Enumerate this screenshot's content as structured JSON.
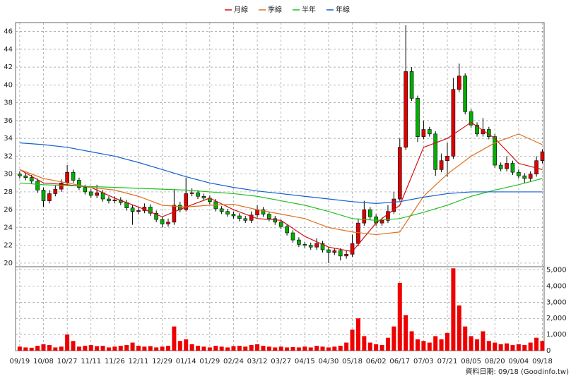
{
  "chart_data": {
    "type": "candlestick",
    "legend": [
      "月線",
      "季線",
      "半年",
      "年線"
    ],
    "footer": "資料日期: 09/18 (Goodinfo.tw)",
    "grid": true,
    "up_color": "#e00000",
    "down_color": "#00b000",
    "volume_color": "#ee0000",
    "xlim": [
      -0.7,
      88.3
    ],
    "xticks": [
      {
        "value": 0,
        "label": "09/19"
      },
      {
        "value": 4,
        "label": "10/08"
      },
      {
        "value": 8,
        "label": "10/27"
      },
      {
        "value": 12,
        "label": "11/11"
      },
      {
        "value": 16,
        "label": "11/26"
      },
      {
        "value": 20,
        "label": "12/11"
      },
      {
        "value": 24,
        "label": "12/29"
      },
      {
        "value": 28,
        "label": "01/14"
      },
      {
        "value": 32,
        "label": "01/29"
      },
      {
        "value": 36,
        "label": "02/24"
      },
      {
        "value": 40,
        "label": "03/12"
      },
      {
        "value": 44,
        "label": "03/27"
      },
      {
        "value": 48,
        "label": "04/15"
      },
      {
        "value": 52,
        "label": "04/30"
      },
      {
        "value": 56,
        "label": "05/18"
      },
      {
        "value": 60,
        "label": "06/02"
      },
      {
        "value": 64,
        "label": "06/17"
      },
      {
        "value": 68,
        "label": "07/03"
      },
      {
        "value": 72,
        "label": "07/21"
      },
      {
        "value": 76,
        "label": "08/05"
      },
      {
        "value": 80,
        "label": "08/20"
      },
      {
        "value": 84,
        "label": "09/04"
      },
      {
        "value": 88,
        "label": "09/18"
      }
    ],
    "ylim": [
      19.6,
      47
    ],
    "yticks": [
      20,
      22,
      24,
      26,
      28,
      30,
      32,
      34,
      36,
      38,
      40,
      42,
      44,
      46
    ],
    "y2lim": [
      0,
      5200
    ],
    "y2ticks": [
      0,
      {
        "value": 1000,
        "label": "1,000"
      },
      {
        "value": 2000,
        "label": "2,000"
      },
      {
        "value": 3000,
        "label": "3,000"
      },
      {
        "value": 4000,
        "label": "4,000"
      },
      {
        "value": 5000,
        "label": "5,000"
      }
    ],
    "ohlc": [
      [
        30.0,
        30.3,
        29.5,
        29.8
      ],
      [
        29.8,
        30.1,
        29.3,
        29.6
      ],
      [
        29.6,
        29.9,
        28.9,
        29.2
      ],
      [
        29.2,
        29.5,
        27.9,
        28.2
      ],
      [
        28.2,
        28.5,
        26.3,
        27.0
      ],
      [
        27.0,
        28.2,
        26.7,
        27.8
      ],
      [
        27.8,
        28.7,
        27.5,
        28.3
      ],
      [
        28.3,
        29.4,
        28.0,
        29.0
      ],
      [
        29.0,
        31.0,
        28.7,
        30.2
      ],
      [
        30.2,
        30.5,
        29.0,
        29.3
      ],
      [
        29.3,
        29.6,
        28.2,
        28.5
      ],
      [
        28.5,
        28.8,
        27.7,
        28.0
      ],
      [
        28.0,
        28.3,
        27.3,
        27.6
      ],
      [
        27.6,
        28.8,
        27.3,
        27.9
      ],
      [
        27.9,
        28.2,
        26.9,
        27.2
      ],
      [
        27.2,
        27.5,
        26.7,
        27.0
      ],
      [
        27.0,
        27.5,
        26.7,
        27.1
      ],
      [
        27.1,
        27.4,
        26.5,
        26.8
      ],
      [
        26.8,
        27.1,
        25.9,
        26.2
      ],
      [
        26.2,
        26.5,
        24.3,
        25.8
      ],
      [
        25.8,
        26.3,
        25.5,
        25.9
      ],
      [
        25.9,
        26.7,
        25.6,
        26.3
      ],
      [
        26.3,
        26.6,
        25.3,
        25.6
      ],
      [
        25.6,
        25.9,
        24.6,
        24.9
      ],
      [
        24.9,
        25.2,
        24.0,
        24.4
      ],
      [
        24.4,
        25.0,
        24.1,
        24.6
      ],
      [
        24.6,
        28.3,
        24.3,
        26.5
      ],
      [
        26.5,
        26.9,
        25.7,
        26.0
      ],
      [
        26.0,
        29.6,
        25.8,
        27.8
      ],
      [
        27.8,
        28.4,
        27.5,
        27.9
      ],
      [
        27.9,
        28.2,
        27.2,
        27.5
      ],
      [
        27.5,
        27.8,
        27.0,
        27.3
      ],
      [
        27.3,
        27.6,
        26.6,
        26.9
      ],
      [
        26.9,
        27.2,
        25.8,
        26.1
      ],
      [
        26.1,
        26.4,
        25.5,
        25.8
      ],
      [
        25.8,
        26.1,
        25.2,
        25.5
      ],
      [
        25.5,
        25.8,
        25.0,
        25.3
      ],
      [
        25.3,
        25.6,
        24.7,
        25.0
      ],
      [
        25.0,
        25.3,
        24.5,
        24.8
      ],
      [
        24.8,
        25.8,
        24.5,
        25.4
      ],
      [
        25.4,
        26.5,
        25.1,
        26.0
      ],
      [
        26.0,
        26.3,
        25.2,
        25.5
      ],
      [
        25.5,
        25.8,
        24.7,
        25.0
      ],
      [
        25.0,
        25.3,
        24.3,
        24.6
      ],
      [
        24.6,
        24.9,
        23.8,
        24.1
      ],
      [
        24.1,
        24.4,
        23.1,
        23.4
      ],
      [
        23.4,
        23.7,
        22.3,
        22.6
      ],
      [
        22.6,
        22.9,
        21.8,
        22.1
      ],
      [
        22.1,
        22.4,
        21.7,
        22.0
      ],
      [
        22.0,
        22.3,
        21.5,
        21.8
      ],
      [
        21.8,
        22.8,
        21.5,
        22.2
      ],
      [
        22.2,
        22.5,
        21.2,
        21.5
      ],
      [
        21.5,
        21.8,
        20.0,
        21.2
      ],
      [
        21.2,
        21.7,
        20.9,
        21.4
      ],
      [
        21.4,
        21.7,
        20.3,
        20.8
      ],
      [
        20.8,
        21.4,
        20.5,
        21.0
      ],
      [
        21.0,
        23.2,
        20.7,
        22.2
      ],
      [
        22.2,
        25.0,
        21.9,
        24.5
      ],
      [
        24.5,
        27.0,
        24.2,
        26.0
      ],
      [
        26.0,
        26.3,
        24.9,
        25.2
      ],
      [
        25.2,
        25.5,
        24.2,
        24.5
      ],
      [
        24.5,
        25.1,
        24.2,
        24.8
      ],
      [
        24.8,
        26.5,
        24.5,
        25.8
      ],
      [
        25.8,
        28.0,
        25.5,
        27.2
      ],
      [
        27.2,
        34.0,
        27.0,
        33.0
      ],
      [
        33.0,
        46.7,
        32.7,
        41.5
      ],
      [
        41.5,
        42.0,
        38.2,
        38.5
      ],
      [
        38.5,
        38.8,
        33.6,
        34.2
      ],
      [
        34.2,
        36.0,
        33.9,
        35.0
      ],
      [
        35.0,
        35.3,
        34.2,
        34.5
      ],
      [
        34.5,
        34.8,
        29.8,
        30.5
      ],
      [
        30.5,
        32.3,
        30.2,
        31.5
      ],
      [
        31.5,
        33.5,
        29.7,
        32.0
      ],
      [
        32.0,
        40.8,
        31.7,
        39.5
      ],
      [
        39.5,
        42.4,
        39.2,
        41.0
      ],
      [
        41.0,
        41.3,
        36.7,
        37.0
      ],
      [
        37.0,
        37.3,
        35.2,
        35.5
      ],
      [
        35.5,
        35.8,
        34.2,
        34.5
      ],
      [
        34.5,
        36.3,
        34.2,
        35.0
      ],
      [
        35.0,
        35.3,
        33.9,
        34.2
      ],
      [
        34.2,
        34.5,
        30.7,
        31.0
      ],
      [
        31.0,
        31.3,
        30.3,
        30.6
      ],
      [
        30.6,
        32.0,
        30.3,
        31.2
      ],
      [
        31.2,
        31.5,
        29.9,
        30.2
      ],
      [
        30.2,
        30.5,
        29.5,
        29.8
      ],
      [
        29.8,
        30.1,
        29.0,
        29.5
      ],
      [
        29.5,
        30.3,
        29.2,
        30.0
      ],
      [
        30.0,
        32.0,
        29.7,
        31.5
      ],
      [
        31.5,
        32.8,
        31.2,
        32.5
      ]
    ],
    "volume": [
      250,
      200,
      180,
      300,
      400,
      350,
      200,
      250,
      1000,
      600,
      250,
      300,
      350,
      280,
      300,
      200,
      250,
      300,
      350,
      500,
      300,
      250,
      280,
      200,
      250,
      300,
      1500,
      600,
      700,
      400,
      300,
      250,
      200,
      300,
      250,
      200,
      280,
      300,
      250,
      350,
      400,
      300,
      250,
      200,
      250,
      200,
      220,
      200,
      250,
      200,
      300,
      250,
      200,
      250,
      300,
      500,
      1300,
      2000,
      900,
      500,
      400,
      350,
      800,
      1500,
      4200,
      2200,
      1200,
      700,
      600,
      500,
      900,
      700,
      1100,
      5100,
      2800,
      1500,
      900,
      700,
      1200,
      600,
      500,
      400,
      450,
      350,
      400,
      350,
      500,
      800,
      600
    ],
    "series": [
      {
        "name": "月線",
        "color": "#d01010",
        "values": [
          30.5,
          29,
          28.8,
          28.5,
          27.3,
          26.3,
          25.2,
          26.3,
          27.3,
          26,
          25,
          24.8,
          23,
          21.8,
          21.3,
          24.5,
          26.5,
          33,
          34,
          35.8,
          34,
          31.2,
          30.5
        ]
      },
      {
        "name": "季線",
        "color": "#e07020",
        "values": [
          30.5,
          29.5,
          29.0,
          28.5,
          28.2,
          27.5,
          26.5,
          26.3,
          26.5,
          26.6,
          26.0,
          25.5,
          25.0,
          24.0,
          23.5,
          23.2,
          23.5,
          27.5,
          30,
          32,
          33.5,
          34.5,
          33.3
        ]
      },
      {
        "name": "半年",
        "color": "#20c020",
        "values": [
          29.0,
          28.8,
          28.7,
          28.6,
          28.5,
          28.4,
          28.3,
          28.2,
          28.0,
          27.8,
          27.5,
          27.0,
          26.5,
          25.8,
          25.0,
          24.8,
          25.0,
          25.7,
          26.5,
          27.5,
          28.2,
          28.8,
          29.5
        ]
      },
      {
        "name": "年線",
        "color": "#1060d0",
        "values": [
          33.5,
          33.3,
          33.0,
          32.5,
          32.0,
          31.3,
          30.5,
          29.7,
          29.0,
          28.5,
          28.1,
          27.8,
          27.5,
          27.2,
          26.9,
          26.7,
          26.9,
          27.4,
          27.8,
          28.0,
          28.0,
          28.0,
          28.0
        ]
      }
    ]
  }
}
